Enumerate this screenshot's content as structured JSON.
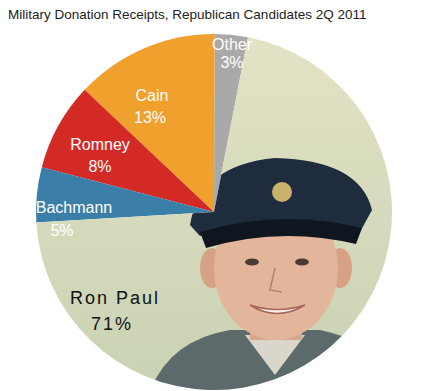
{
  "chart_data": {
    "type": "pie",
    "title": "Military Donation Receipts, Republican Candidates 2Q 2011",
    "categories": [
      "Other",
      "Cain",
      "Romney",
      "Bachmann",
      "Ron Paul"
    ],
    "values": [
      3,
      13,
      8,
      5,
      71
    ],
    "value_labels": [
      "3%",
      "13%",
      "8%",
      "5%",
      "71%"
    ],
    "colors": [
      "#a9a9a9",
      "#f0a02c",
      "#d42a26",
      "#3b7fa8",
      "#c9d2b4"
    ],
    "data_labels": true
  }
}
